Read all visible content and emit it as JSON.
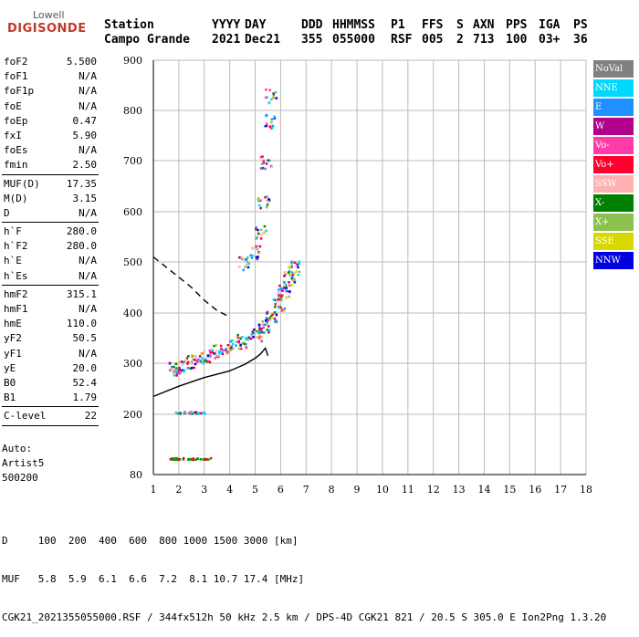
{
  "logo": {
    "line1": "Lowell",
    "line2": "DIGISONDE"
  },
  "header": {
    "labels": [
      "Station",
      "YYYY",
      "DAY",
      "DDD",
      "HHMMSS",
      "P1",
      "FFS",
      "S",
      "AXN",
      "PPS",
      "IGA",
      "PS"
    ],
    "values": [
      "Campo Grande",
      "2021",
      "Dec21",
      "355",
      "055000",
      "RSF",
      "005",
      "2",
      "713",
      "100",
      "03+",
      "36"
    ]
  },
  "params": [
    [
      [
        "foF2",
        "5.500"
      ],
      [
        "foF1",
        "N/A"
      ],
      [
        "foF1p",
        "N/A"
      ],
      [
        "foE",
        "N/A"
      ],
      [
        "foEp",
        "0.47"
      ],
      [
        "fxI",
        "5.90"
      ],
      [
        "foEs",
        "N/A"
      ],
      [
        "fmin",
        "2.50"
      ]
    ],
    [
      [
        "MUF(D)",
        "17.35"
      ],
      [
        "M(D)",
        "3.15"
      ],
      [
        "D",
        "N/A"
      ]
    ],
    [
      [
        "h`F",
        "280.0"
      ],
      [
        "h`F2",
        "280.0"
      ],
      [
        "h`E",
        "N/A"
      ],
      [
        "h`Es",
        "N/A"
      ]
    ],
    [
      [
        "hmF2",
        "315.1"
      ],
      [
        "hmF1",
        "N/A"
      ],
      [
        "hmE",
        "110.0"
      ],
      [
        "yF2",
        "50.5"
      ],
      [
        "yF1",
        "N/A"
      ],
      [
        "yE",
        "20.0"
      ],
      [
        "B0",
        "52.4"
      ],
      [
        "B1",
        "1.79"
      ]
    ],
    [
      [
        "C-level",
        "22"
      ]
    ]
  ],
  "auto": {
    "line1": "Auto:",
    "line2": "Artist5",
    "line3": "500200"
  },
  "legend": [
    {
      "label": "NoVal",
      "color": "#808080"
    },
    {
      "label": "NNE",
      "color": "#00d8ff"
    },
    {
      "label": "E",
      "color": "#1e90ff"
    },
    {
      "label": "W",
      "color": "#b0008c"
    },
    {
      "label": "Vo-",
      "color": "#ff3ca8"
    },
    {
      "label": "Vo+",
      "color": "#ff0030"
    },
    {
      "label": "SSW",
      "color": "#ffb0b0"
    },
    {
      "label": "X-",
      "color": "#008000"
    },
    {
      "label": "X+",
      "color": "#8cc050"
    },
    {
      "label": "SSE",
      "color": "#d8d800"
    },
    {
      "label": "NNW",
      "color": "#0000e0"
    }
  ],
  "footer": {
    "line1": "D     100  200  400  600  800 1000 1500 3000 [km]",
    "line2": "MUF   5.8  5.9  6.1  6.6  7.2  8.1 10.7 17.4 [MHz]",
    "line3": "CGK21_2021355055000.RSF / 344fx512h 50 kHz 2.5 km / DPS-4D CGK21 821 / 20.5 S 305.0 E Ion2Png 1.3.20"
  },
  "chart_data": {
    "type": "scatter",
    "title": "",
    "xlabel": "",
    "ylabel": "",
    "xlim": [
      1,
      18
    ],
    "ylim": [
      80,
      900
    ],
    "x_ticks": [
      1,
      2,
      3,
      4,
      5,
      6,
      7,
      8,
      9,
      10,
      11,
      12,
      13,
      14,
      15,
      16,
      17,
      18
    ],
    "y_ticks": [
      80,
      200,
      300,
      400,
      500,
      600,
      700,
      800,
      900
    ],
    "grid": true,
    "series": [
      {
        "name": "O-trace",
        "color": "#c81e78",
        "points": [
          [
            1.8,
            290
          ],
          [
            2.0,
            295
          ],
          [
            2.5,
            305
          ],
          [
            3.0,
            315
          ],
          [
            3.5,
            325
          ],
          [
            4.0,
            335
          ],
          [
            4.5,
            345
          ],
          [
            5.0,
            360
          ],
          [
            5.3,
            375
          ],
          [
            5.6,
            395
          ],
          [
            5.9,
            420
          ],
          [
            6.1,
            445
          ],
          [
            6.3,
            470
          ],
          [
            6.5,
            490
          ]
        ]
      },
      {
        "name": "F-spread",
        "color": "#0000e0",
        "points": [
          [
            4.5,
            500
          ],
          [
            5.0,
            520
          ],
          [
            5.2,
            560
          ],
          [
            5.3,
            620
          ],
          [
            5.4,
            700
          ],
          [
            5.5,
            780
          ],
          [
            5.6,
            830
          ]
        ]
      },
      {
        "name": "Es-trace",
        "color": "#00a000",
        "points": [
          [
            1.8,
            113
          ],
          [
            2.0,
            113
          ],
          [
            2.5,
            113
          ],
          [
            3.0,
            113
          ]
        ]
      },
      {
        "name": "blob-200",
        "color": "#d8d800",
        "points": [
          [
            2.0,
            205
          ],
          [
            2.4,
            205
          ],
          [
            2.8,
            205
          ]
        ]
      }
    ],
    "lines": [
      {
        "name": "profile-solid",
        "style": "solid",
        "points": [
          [
            1.0,
            235
          ],
          [
            2.0,
            255
          ],
          [
            3.0,
            272
          ],
          [
            4.0,
            285
          ],
          [
            4.6,
            298
          ],
          [
            5.0,
            310
          ],
          [
            5.2,
            318
          ],
          [
            5.4,
            330
          ],
          [
            5.5,
            315
          ]
        ]
      },
      {
        "name": "profile-dashed",
        "style": "dashed",
        "points": [
          [
            1.0,
            510
          ],
          [
            1.5,
            490
          ],
          [
            2.0,
            470
          ],
          [
            2.5,
            450
          ],
          [
            3.0,
            425
          ],
          [
            3.5,
            405
          ],
          [
            4.0,
            392
          ]
        ]
      }
    ]
  }
}
